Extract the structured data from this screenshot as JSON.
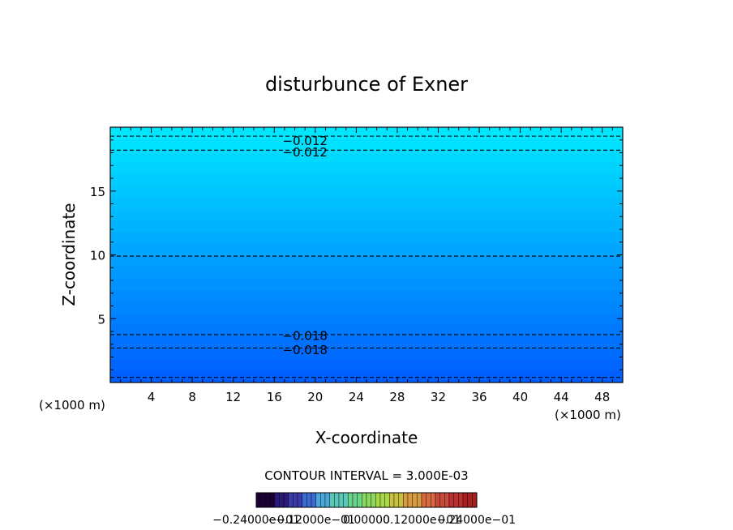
{
  "chart_data": {
    "type": "contour",
    "title": "disturbunce of Exner",
    "xlabel": "X-coordinate",
    "ylabel": "Z-coordinate",
    "x_unit": "(×1000 m)",
    "x_unit_right": "(×1000 m)",
    "xlim": [
      0,
      50
    ],
    "ylim": [
      0,
      20
    ],
    "x_ticks": [
      4,
      8,
      12,
      16,
      20,
      24,
      28,
      32,
      36,
      40,
      44,
      48
    ],
    "y_ticks": [
      5,
      10,
      15
    ],
    "contour_interval_text": "CONTOUR INTERVAL = 3.000E-03",
    "contour_labels": [
      {
        "text": "−0.012",
        "x": 19,
        "z": 19.0
      },
      {
        "text": "−0.012",
        "x": 19,
        "z": 18.1
      },
      {
        "text": "−0.018",
        "x": 19,
        "z": 3.7
      },
      {
        "text": "−0.018",
        "x": 19,
        "z": 2.6
      }
    ],
    "contour_lines_z": [
      0.4,
      2.7,
      3.75,
      9.9,
      18.2,
      19.3
    ],
    "colorbar_labels": [
      "−0.24000e−01",
      "−0.12000e−01",
      "0.00000",
      "0.12000e−01",
      "0.24000e−01"
    ],
    "colorbar_colors": [
      "#1a0033",
      "#2a1a7a",
      "#3a3aa8",
      "#3b6bd0",
      "#4aa6d8",
      "#5ac8b8",
      "#6ad48a",
      "#8ad860",
      "#a8d848",
      "#c8c040",
      "#d89a40",
      "#d86a40",
      "#c84a3a",
      "#b83030",
      "#a82020"
    ]
  }
}
